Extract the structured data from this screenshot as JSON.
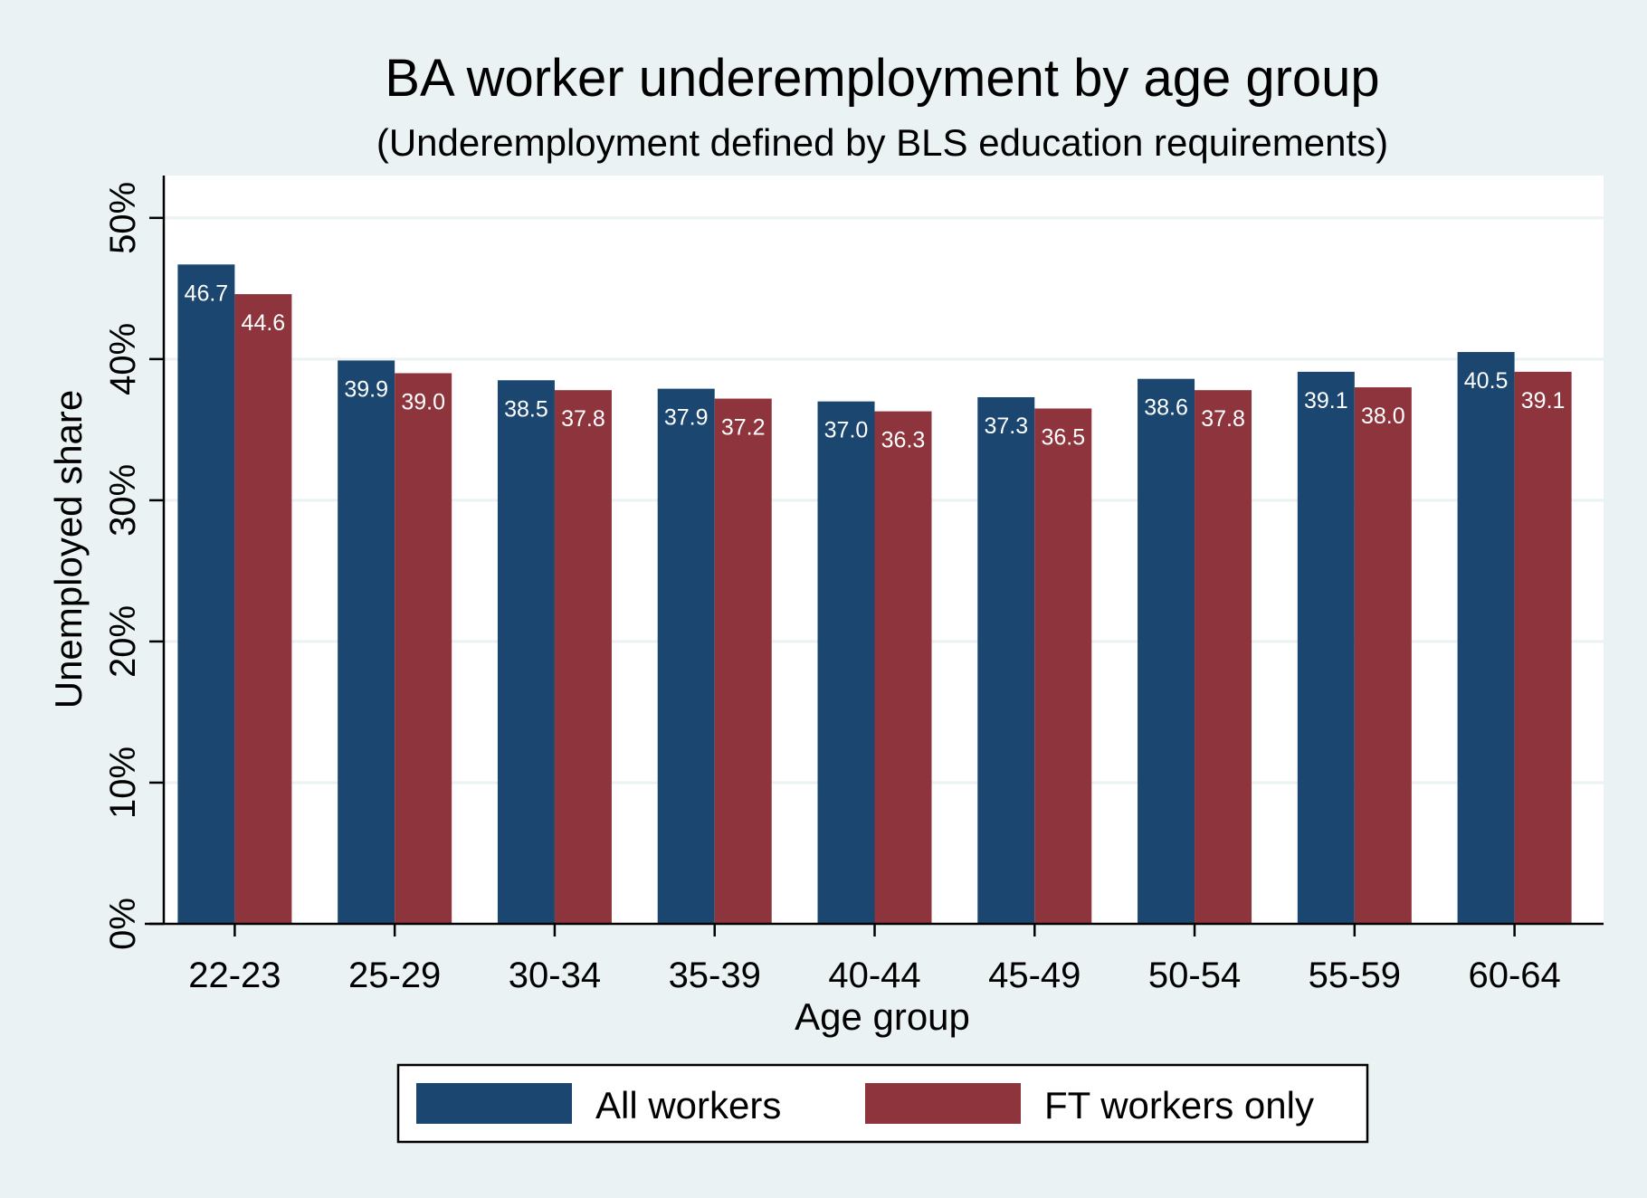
{
  "chart_data": {
    "type": "bar",
    "title": "BA worker underemployment by age group",
    "subtitle": "(Underemployment defined by BLS education requirements)",
    "xlabel": "Age group",
    "ylabel": "Unemployed share",
    "categories": [
      "22-23",
      "25-29",
      "30-34",
      "35-39",
      "40-44",
      "45-49",
      "50-54",
      "55-59",
      "60-64"
    ],
    "series": [
      {
        "name": "All workers",
        "color": "#1b466f",
        "values": [
          46.7,
          39.9,
          38.5,
          37.9,
          37.0,
          37.3,
          38.6,
          39.1,
          40.5
        ],
        "labels": [
          "46.7",
          "39.9",
          "38.5",
          "37.9",
          "37.0",
          "37.3",
          "38.6",
          "39.1",
          "40.5"
        ]
      },
      {
        "name": "FT workers only",
        "color": "#8e343d",
        "values": [
          44.6,
          39.0,
          37.8,
          37.2,
          36.3,
          36.5,
          37.8,
          38.0,
          39.1
        ],
        "labels": [
          "44.6",
          "39.0",
          "37.8",
          "37.2",
          "36.3",
          "36.5",
          "37.8",
          "38.0",
          "39.1"
        ]
      }
    ],
    "ylim": [
      0,
      53
    ],
    "yticks": [
      0,
      10,
      20,
      30,
      40,
      50
    ],
    "ytick_labels": [
      "0%",
      "10%",
      "20%",
      "30%",
      "40%",
      "50%"
    ],
    "grid": true,
    "legend_position": "bottom"
  }
}
